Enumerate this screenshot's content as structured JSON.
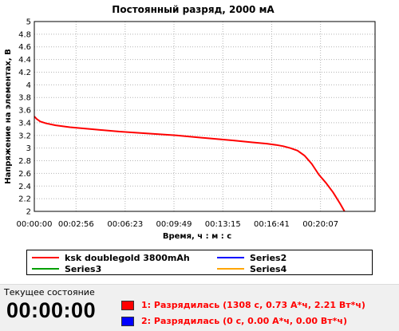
{
  "chart_data": {
    "type": "line",
    "title": "Постоянный разряд, 2000 мА",
    "xlabel": "Время, ч : м : с",
    "ylabel": "Напряжение на элементах, В",
    "ylim": [
      2,
      5
    ],
    "xlim_seconds": [
      0,
      1437
    ],
    "yticks": [
      "2",
      "2.2",
      "2.4",
      "2.6",
      "2.8",
      "3",
      "3.2",
      "3.4",
      "3.6",
      "3.8",
      "4",
      "4.2",
      "4.4",
      "4.6",
      "4.8",
      "5"
    ],
    "xticks": [
      "00:00:00",
      "00:02:56",
      "00:06:23",
      "00:09:49",
      "00:13:15",
      "00:16:41",
      "00:20:07"
    ],
    "grid": true,
    "legend_position": "bottom",
    "series": [
      {
        "name": "ksk doublegold 3800mAh",
        "color": "#ff0000",
        "x_seconds": [
          0,
          10,
          25,
          50,
          90,
          150,
          240,
          360,
          480,
          600,
          720,
          840,
          920,
          980,
          1020,
          1050,
          1080,
          1110,
          1140,
          1170,
          1200,
          1230,
          1260,
          1290,
          1308
        ],
        "y": [
          3.5,
          3.46,
          3.42,
          3.39,
          3.36,
          3.33,
          3.3,
          3.26,
          3.23,
          3.2,
          3.16,
          3.12,
          3.09,
          3.07,
          3.05,
          3.03,
          3.0,
          2.96,
          2.88,
          2.75,
          2.58,
          2.45,
          2.3,
          2.12,
          2.0
        ]
      },
      {
        "name": "Series2",
        "color": "#0000ff",
        "x_seconds": [],
        "y": []
      },
      {
        "name": "Series3",
        "color": "#00a000",
        "x_seconds": [],
        "y": []
      },
      {
        "name": "Series4",
        "color": "#ffa500",
        "x_seconds": [],
        "y": []
      }
    ]
  },
  "status": {
    "title": "Текущее состояние",
    "timer": "00:00:00",
    "rows": [
      {
        "text": "1: Разрядилась (1308 с, 0.73 А*ч, 2.21 Вт*ч)",
        "color": "#ff0000",
        "swatch": "#ff0000"
      },
      {
        "text": "2: Разрядилась (0 с, 0.00 А*ч, 0.00 Вт*ч)",
        "color": "#ff0000",
        "swatch": "#0000ff"
      }
    ]
  }
}
